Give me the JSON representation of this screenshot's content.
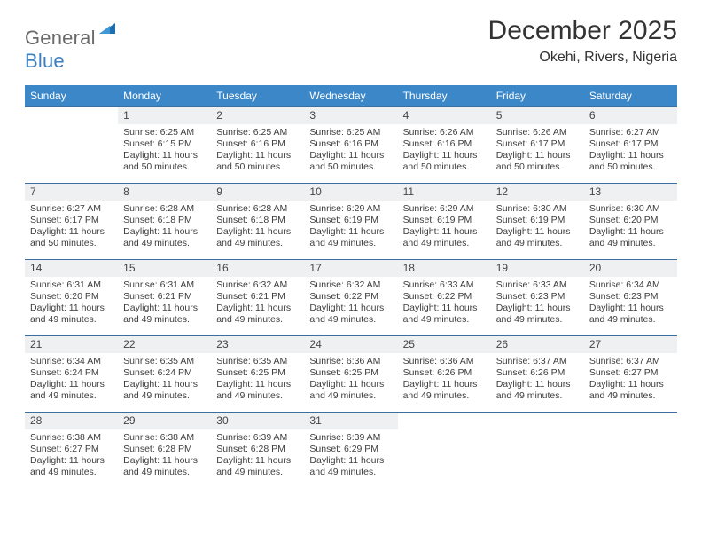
{
  "logo": {
    "text_a": "General",
    "text_b": "Blue"
  },
  "title": "December 2025",
  "subtitle": "Okehi, Rivers, Nigeria",
  "colors": {
    "header_bg": "#3b87c8",
    "header_text": "#ffffff",
    "daynum_bg": "#eef0f2",
    "row_divider": "#3b6fa0",
    "logo_gray": "#6a6a6a",
    "logo_blue": "#3b7fbf",
    "body_text": "#3d3d3d",
    "page_bg": "#ffffff"
  },
  "day_headers": [
    "Sunday",
    "Monday",
    "Tuesday",
    "Wednesday",
    "Thursday",
    "Friday",
    "Saturday"
  ],
  "weeks": [
    [
      null,
      {
        "n": "1",
        "sr": "Sunrise: 6:25 AM",
        "ss": "Sunset: 6:15 PM",
        "d1": "Daylight: 11 hours",
        "d2": "and 50 minutes."
      },
      {
        "n": "2",
        "sr": "Sunrise: 6:25 AM",
        "ss": "Sunset: 6:16 PM",
        "d1": "Daylight: 11 hours",
        "d2": "and 50 minutes."
      },
      {
        "n": "3",
        "sr": "Sunrise: 6:25 AM",
        "ss": "Sunset: 6:16 PM",
        "d1": "Daylight: 11 hours",
        "d2": "and 50 minutes."
      },
      {
        "n": "4",
        "sr": "Sunrise: 6:26 AM",
        "ss": "Sunset: 6:16 PM",
        "d1": "Daylight: 11 hours",
        "d2": "and 50 minutes."
      },
      {
        "n": "5",
        "sr": "Sunrise: 6:26 AM",
        "ss": "Sunset: 6:17 PM",
        "d1": "Daylight: 11 hours",
        "d2": "and 50 minutes."
      },
      {
        "n": "6",
        "sr": "Sunrise: 6:27 AM",
        "ss": "Sunset: 6:17 PM",
        "d1": "Daylight: 11 hours",
        "d2": "and 50 minutes."
      }
    ],
    [
      {
        "n": "7",
        "sr": "Sunrise: 6:27 AM",
        "ss": "Sunset: 6:17 PM",
        "d1": "Daylight: 11 hours",
        "d2": "and 50 minutes."
      },
      {
        "n": "8",
        "sr": "Sunrise: 6:28 AM",
        "ss": "Sunset: 6:18 PM",
        "d1": "Daylight: 11 hours",
        "d2": "and 49 minutes."
      },
      {
        "n": "9",
        "sr": "Sunrise: 6:28 AM",
        "ss": "Sunset: 6:18 PM",
        "d1": "Daylight: 11 hours",
        "d2": "and 49 minutes."
      },
      {
        "n": "10",
        "sr": "Sunrise: 6:29 AM",
        "ss": "Sunset: 6:19 PM",
        "d1": "Daylight: 11 hours",
        "d2": "and 49 minutes."
      },
      {
        "n": "11",
        "sr": "Sunrise: 6:29 AM",
        "ss": "Sunset: 6:19 PM",
        "d1": "Daylight: 11 hours",
        "d2": "and 49 minutes."
      },
      {
        "n": "12",
        "sr": "Sunrise: 6:30 AM",
        "ss": "Sunset: 6:19 PM",
        "d1": "Daylight: 11 hours",
        "d2": "and 49 minutes."
      },
      {
        "n": "13",
        "sr": "Sunrise: 6:30 AM",
        "ss": "Sunset: 6:20 PM",
        "d1": "Daylight: 11 hours",
        "d2": "and 49 minutes."
      }
    ],
    [
      {
        "n": "14",
        "sr": "Sunrise: 6:31 AM",
        "ss": "Sunset: 6:20 PM",
        "d1": "Daylight: 11 hours",
        "d2": "and 49 minutes."
      },
      {
        "n": "15",
        "sr": "Sunrise: 6:31 AM",
        "ss": "Sunset: 6:21 PM",
        "d1": "Daylight: 11 hours",
        "d2": "and 49 minutes."
      },
      {
        "n": "16",
        "sr": "Sunrise: 6:32 AM",
        "ss": "Sunset: 6:21 PM",
        "d1": "Daylight: 11 hours",
        "d2": "and 49 minutes."
      },
      {
        "n": "17",
        "sr": "Sunrise: 6:32 AM",
        "ss": "Sunset: 6:22 PM",
        "d1": "Daylight: 11 hours",
        "d2": "and 49 minutes."
      },
      {
        "n": "18",
        "sr": "Sunrise: 6:33 AM",
        "ss": "Sunset: 6:22 PM",
        "d1": "Daylight: 11 hours",
        "d2": "and 49 minutes."
      },
      {
        "n": "19",
        "sr": "Sunrise: 6:33 AM",
        "ss": "Sunset: 6:23 PM",
        "d1": "Daylight: 11 hours",
        "d2": "and 49 minutes."
      },
      {
        "n": "20",
        "sr": "Sunrise: 6:34 AM",
        "ss": "Sunset: 6:23 PM",
        "d1": "Daylight: 11 hours",
        "d2": "and 49 minutes."
      }
    ],
    [
      {
        "n": "21",
        "sr": "Sunrise: 6:34 AM",
        "ss": "Sunset: 6:24 PM",
        "d1": "Daylight: 11 hours",
        "d2": "and 49 minutes."
      },
      {
        "n": "22",
        "sr": "Sunrise: 6:35 AM",
        "ss": "Sunset: 6:24 PM",
        "d1": "Daylight: 11 hours",
        "d2": "and 49 minutes."
      },
      {
        "n": "23",
        "sr": "Sunrise: 6:35 AM",
        "ss": "Sunset: 6:25 PM",
        "d1": "Daylight: 11 hours",
        "d2": "and 49 minutes."
      },
      {
        "n": "24",
        "sr": "Sunrise: 6:36 AM",
        "ss": "Sunset: 6:25 PM",
        "d1": "Daylight: 11 hours",
        "d2": "and 49 minutes."
      },
      {
        "n": "25",
        "sr": "Sunrise: 6:36 AM",
        "ss": "Sunset: 6:26 PM",
        "d1": "Daylight: 11 hours",
        "d2": "and 49 minutes."
      },
      {
        "n": "26",
        "sr": "Sunrise: 6:37 AM",
        "ss": "Sunset: 6:26 PM",
        "d1": "Daylight: 11 hours",
        "d2": "and 49 minutes."
      },
      {
        "n": "27",
        "sr": "Sunrise: 6:37 AM",
        "ss": "Sunset: 6:27 PM",
        "d1": "Daylight: 11 hours",
        "d2": "and 49 minutes."
      }
    ],
    [
      {
        "n": "28",
        "sr": "Sunrise: 6:38 AM",
        "ss": "Sunset: 6:27 PM",
        "d1": "Daylight: 11 hours",
        "d2": "and 49 minutes."
      },
      {
        "n": "29",
        "sr": "Sunrise: 6:38 AM",
        "ss": "Sunset: 6:28 PM",
        "d1": "Daylight: 11 hours",
        "d2": "and 49 minutes."
      },
      {
        "n": "30",
        "sr": "Sunrise: 6:39 AM",
        "ss": "Sunset: 6:28 PM",
        "d1": "Daylight: 11 hours",
        "d2": "and 49 minutes."
      },
      {
        "n": "31",
        "sr": "Sunrise: 6:39 AM",
        "ss": "Sunset: 6:29 PM",
        "d1": "Daylight: 11 hours",
        "d2": "and 49 minutes."
      },
      null,
      null,
      null
    ]
  ]
}
